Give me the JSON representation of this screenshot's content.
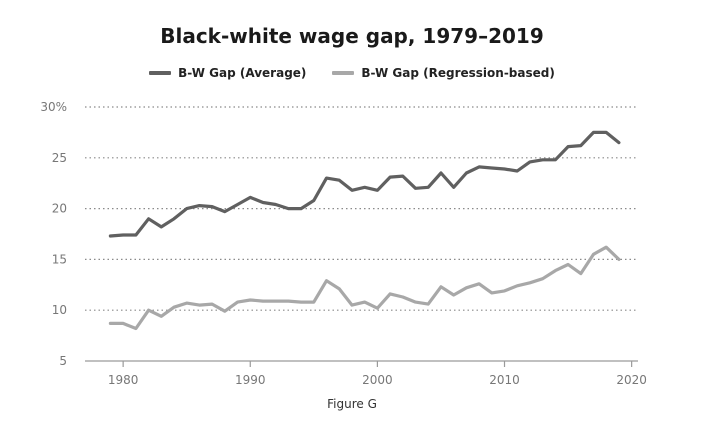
{
  "colors": {
    "average": "#606060",
    "regression": "#a8a8a8",
    "grid": "#8a8a8a",
    "axis": "#9a9a9a",
    "tick_text": "#777777"
  },
  "caption": "Figure G",
  "chart_data": {
    "type": "line",
    "title": "Black-white wage gap, 1979–2019",
    "xlabel": "",
    "ylabel": "",
    "xlim": [
      1977,
      2020.5
    ],
    "ylim": [
      5,
      30
    ],
    "x_ticks": [
      1980,
      1990,
      2000,
      2010,
      2020
    ],
    "y_ticks": [
      5,
      10,
      15,
      20,
      25,
      30
    ],
    "y_tick_labels": [
      "5",
      "10",
      "15",
      "20",
      "25",
      "30%"
    ],
    "grid": "horizontal-dotted",
    "legend_position": "top-center",
    "x": [
      1979,
      1980,
      1981,
      1982,
      1983,
      1984,
      1985,
      1986,
      1987,
      1988,
      1989,
      1990,
      1991,
      1992,
      1993,
      1994,
      1995,
      1996,
      1997,
      1998,
      1999,
      2000,
      2001,
      2002,
      2003,
      2004,
      2005,
      2006,
      2007,
      2008,
      2009,
      2010,
      2011,
      2012,
      2013,
      2014,
      2015,
      2016,
      2017,
      2018,
      2019
    ],
    "series": [
      {
        "name": "B-W Gap (Average)",
        "color": "#606060",
        "values": [
          17.3,
          17.4,
          17.4,
          19.0,
          18.2,
          19.0,
          20.0,
          20.3,
          20.2,
          19.7,
          20.4,
          21.1,
          20.6,
          20.4,
          20.0,
          20.0,
          20.8,
          23.0,
          22.8,
          21.8,
          22.1,
          21.8,
          23.1,
          23.2,
          22.0,
          22.1,
          23.5,
          22.1,
          23.5,
          24.1,
          24.0,
          23.9,
          23.7,
          24.6,
          24.8,
          24.8,
          26.1,
          26.2,
          27.5,
          27.5,
          26.5
        ]
      },
      {
        "name": "B-W Gap (Regression-based)",
        "color": "#a8a8a8",
        "values": [
          8.7,
          8.7,
          8.2,
          10.0,
          9.4,
          10.3,
          10.7,
          10.5,
          10.6,
          9.9,
          10.8,
          11.0,
          10.9,
          10.9,
          10.9,
          10.8,
          10.8,
          12.9,
          12.1,
          10.5,
          10.8,
          10.2,
          11.6,
          11.3,
          10.8,
          10.6,
          12.3,
          11.5,
          12.2,
          12.6,
          11.7,
          11.9,
          12.4,
          12.7,
          13.1,
          13.9,
          14.5,
          13.6,
          15.5,
          16.2,
          15.0
        ]
      }
    ]
  }
}
